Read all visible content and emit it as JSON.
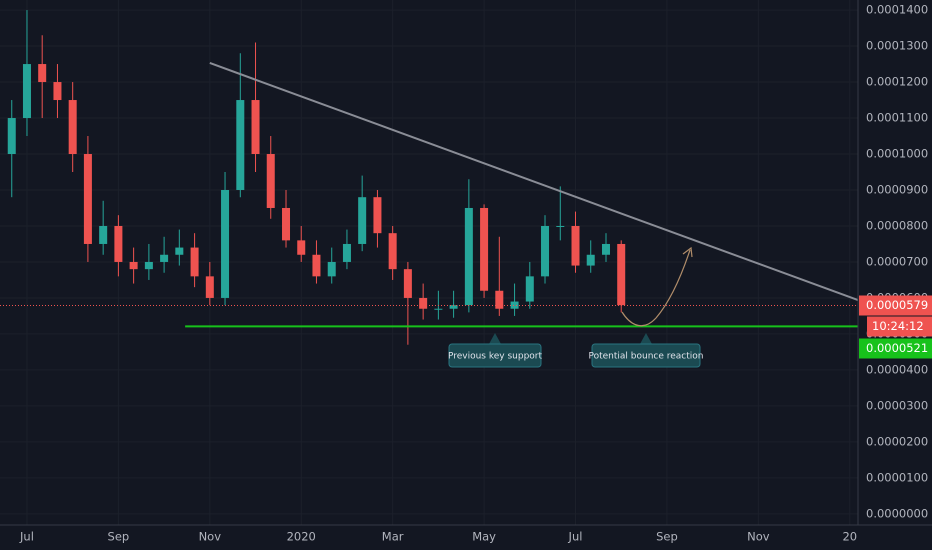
{
  "chart_data": {
    "type": "candlestick",
    "x": [
      -0.333,
      0,
      0.333,
      0.667,
      1,
      1.333,
      1.667,
      2,
      2.333,
      2.667,
      3,
      3.333,
      3.667,
      4,
      4.333,
      4.667,
      5,
      5.333,
      5.667,
      6,
      6.333,
      6.667,
      7,
      7.333,
      7.667,
      8,
      8.333,
      8.667,
      9,
      9.333,
      9.667,
      10,
      10.333,
      10.667,
      11,
      11.333,
      11.667,
      12,
      12.333,
      12.667,
      13
    ],
    "open": [
      0.0001,
      0.00011,
      0.000125,
      0.00012,
      0.000115,
      0.0001,
      7.5e-05,
      8e-05,
      7e-05,
      6.8e-05,
      7e-05,
      7.2e-05,
      7.4e-05,
      6.6e-05,
      6e-05,
      9e-05,
      0.000115,
      0.0001,
      8.5e-05,
      7.6e-05,
      7.2e-05,
      6.6e-05,
      7e-05,
      7.5e-05,
      8.8e-05,
      7.8e-05,
      6.8e-05,
      6e-05,
      5.7e-05,
      5.7e-05,
      5.8e-05,
      8.5e-05,
      6.2e-05,
      5.7e-05,
      5.9e-05,
      6.6e-05,
      8e-05,
      8e-05,
      6.9e-05,
      7.2e-05,
      7.5e-05
    ],
    "high": [
      0.000115,
      0.00014,
      0.000133,
      0.000125,
      0.00012,
      0.000105,
      8.7e-05,
      8.3e-05,
      7.4e-05,
      7.5e-05,
      7.7e-05,
      7.9e-05,
      7.8e-05,
      7e-05,
      9.5e-05,
      0.000128,
      0.000131,
      0.000105,
      9e-05,
      8e-05,
      7.6e-05,
      7.4e-05,
      7.9e-05,
      9.4e-05,
      9e-05,
      8e-05,
      7e-05,
      6.4e-05,
      6.2e-05,
      6.2e-05,
      9.3e-05,
      8.6e-05,
      7.7e-05,
      6.4e-05,
      7e-05,
      8.3e-05,
      9.1e-05,
      8.4e-05,
      7.6e-05,
      7.8e-05,
      7.6e-05
    ],
    "low": [
      8.8e-05,
      0.000105,
      0.00011,
      0.00011,
      9.5e-05,
      7e-05,
      7.2e-05,
      6.6e-05,
      6.4e-05,
      6.5e-05,
      6.7e-05,
      6.9e-05,
      6.3e-05,
      5.8e-05,
      5.8e-05,
      8.8e-05,
      9.5e-05,
      8.2e-05,
      7.4e-05,
      7e-05,
      6.4e-05,
      6.4e-05,
      6.8e-05,
      7.3e-05,
      7.4e-05,
      6.5e-05,
      4.7e-05,
      5.4e-05,
      5.4e-05,
      5.45e-05,
      5.6e-05,
      6e-05,
      5.5e-05,
      5.5e-05,
      5.7e-05,
      6.4e-05,
      7.6e-05,
      6.7e-05,
      6.7e-05,
      7e-05,
      5.6e-05
    ],
    "close": [
      0.00011,
      0.000125,
      0.00012,
      0.000115,
      0.0001,
      7.5e-05,
      8e-05,
      7e-05,
      6.8e-05,
      7e-05,
      7.2e-05,
      7.4e-05,
      6.6e-05,
      6e-05,
      9e-05,
      0.000115,
      0.0001,
      8.5e-05,
      7.6e-05,
      7.2e-05,
      6.6e-05,
      7e-05,
      7.5e-05,
      8.8e-05,
      7.8e-05,
      6.8e-05,
      6e-05,
      5.7e-05,
      5.7e-05,
      5.8e-05,
      8.5e-05,
      6.2e-05,
      5.7e-05,
      5.9e-05,
      6.6e-05,
      8e-05,
      8e-05,
      6.9e-05,
      7.2e-05,
      7.5e-05,
      5.8e-05
    ],
    "up_color": "#26a69a",
    "down_color": "#ef5350",
    "xlim": [
      -0.59,
      18.18
    ],
    "xticks": [
      {
        "value": 0,
        "label": "Jul"
      },
      {
        "value": 2,
        "label": "Sep"
      },
      {
        "value": 4,
        "label": "Nov"
      },
      {
        "value": 6,
        "label": "2020"
      },
      {
        "value": 8,
        "label": "Mar"
      },
      {
        "value": 10,
        "label": "May"
      },
      {
        "value": 12,
        "label": "Jul"
      },
      {
        "value": 14,
        "label": "Sep"
      },
      {
        "value": 16,
        "label": "Nov"
      },
      {
        "value": 18,
        "label": "20"
      }
    ],
    "ylim": [
      -3.1e-06,
      0.0001428
    ],
    "yticks": [
      {
        "value": 0,
        "label": "0.0000000"
      },
      {
        "value": 1e-05,
        "label": "0.0000100"
      },
      {
        "value": 2e-05,
        "label": "0.0000200"
      },
      {
        "value": 3e-05,
        "label": "0.0000300"
      },
      {
        "value": 4e-05,
        "label": "0.0000400"
      },
      {
        "value": 5e-05,
        "label": "0.0000500"
      },
      {
        "value": 6e-05,
        "label": "0.0000600"
      },
      {
        "value": 7e-05,
        "label": "0.0000700"
      },
      {
        "value": 8e-05,
        "label": "0.0000800"
      },
      {
        "value": 9e-05,
        "label": "0.0000900"
      },
      {
        "value": 0.0001,
        "label": "0.0001000"
      },
      {
        "value": 0.00011,
        "label": "0.0001100"
      },
      {
        "value": 0.00012,
        "label": "0.0001200"
      },
      {
        "value": 0.00013,
        "label": "0.0001300"
      },
      {
        "value": 0.00014,
        "label": "0.0001400"
      }
    ],
    "grid": true,
    "trendline": {
      "x": [
        4.0,
        18.18
      ],
      "y": [
        0.0001253,
        5.94e-05
      ],
      "color": "#8a8d96"
    },
    "support": {
      "value": 5.21e-05,
      "label": "0.0000521",
      "x": [
        3.46,
        18.18
      ],
      "color": "#17c21b"
    },
    "last_price": {
      "value": 5.79e-05,
      "label": "0.0000579",
      "color": "#ef5350"
    },
    "countdown": "10:24:12",
    "annotations": [
      "Previous key support",
      "Potential bounce reaction"
    ]
  }
}
